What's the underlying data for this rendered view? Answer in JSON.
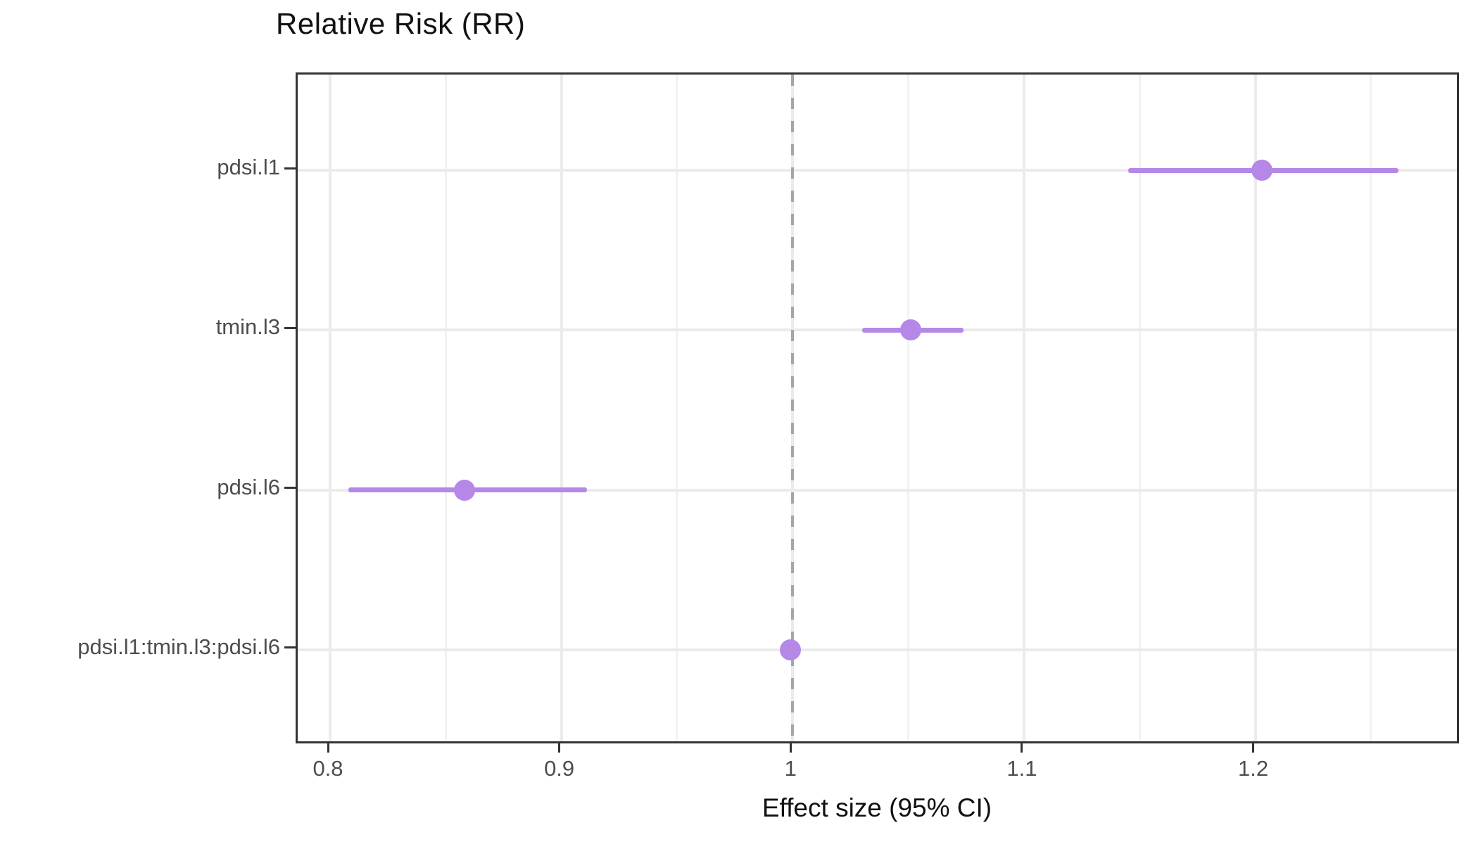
{
  "title": "Relative Risk (RR)",
  "xlabel": "Effect size (95% CI)",
  "colors": {
    "accent_purple": "#b588e8",
    "ref_line_gray": "#a6a6a6",
    "grid_major": "#ebebeb",
    "grid_minor": "#f2f2f2",
    "panel_border": "#343434",
    "axis_text": "#4d4d4d",
    "title_text": "#111111"
  },
  "chart_data": {
    "type": "scatter",
    "subtype": "forest-pointrange",
    "title": "Relative Risk (RR)",
    "xlabel": "Effect size (95% CI)",
    "ylabel": "",
    "grid": "on",
    "legend": "none",
    "xlim": [
      0.786,
      1.289
    ],
    "ref_line_x": 1,
    "x_major_ticks": [
      0.8,
      0.9,
      1,
      1.1,
      1.2
    ],
    "x_tick_labels": [
      "0.8",
      "0.9",
      "1",
      "1.1",
      "1.2"
    ],
    "x_minor_ticks": [
      0.85,
      0.95,
      1.05,
      1.15,
      1.25
    ],
    "categories": [
      "pdsi.l1",
      "tmin.l3",
      "pdsi.l6",
      "pdsi.l1:tmin.l3:pdsi.l6"
    ],
    "points": [
      {
        "label": "pdsi.l1",
        "est": 1.203,
        "ci_low": 1.145,
        "ci_high": 1.262
      },
      {
        "label": "tmin.l3",
        "est": 1.051,
        "ci_low": 1.03,
        "ci_high": 1.074
      },
      {
        "label": "pdsi.l6",
        "est": 0.858,
        "ci_low": 0.808,
        "ci_high": 0.911
      },
      {
        "label": "pdsi.l1:tmin.l3:pdsi.l6",
        "est": 0.999,
        "ci_low": 0.995,
        "ci_high": 1.003
      }
    ]
  }
}
